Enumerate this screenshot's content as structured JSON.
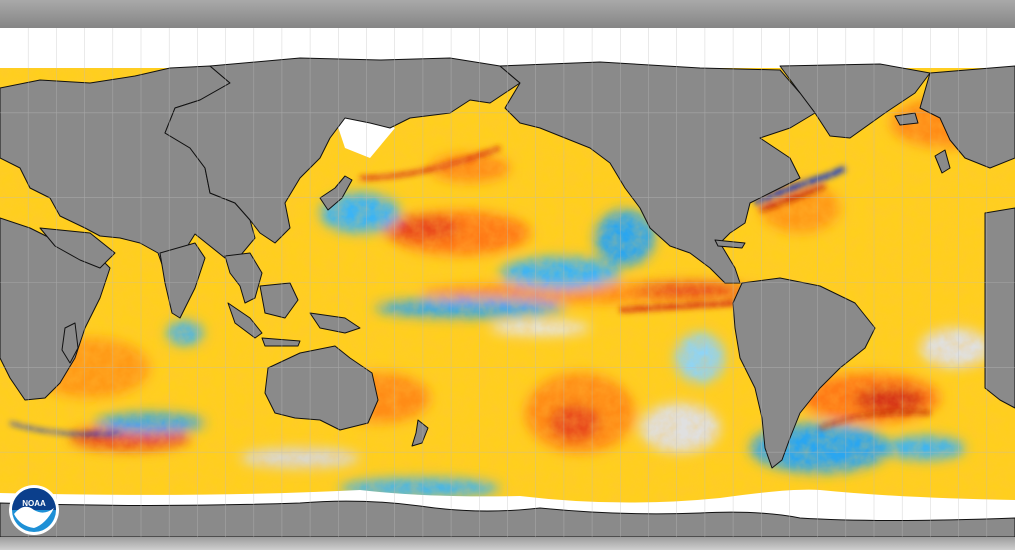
{
  "map": {
    "projection": "equirectangular",
    "variable": "sea-surface-temperature-anomaly",
    "colors": {
      "land": "#8a8a8a",
      "sea_ice": "#ffffff",
      "neutral": "#d9d9d9",
      "strong_cold": "#1e3cc8",
      "cold": "#2aa6f0",
      "light_cold": "#8fd4f5",
      "warm_light": "#ffe600",
      "warm": "#ffbe14",
      "warmer": "#ff8c14",
      "hot": "#e8461e",
      "very_hot": "#b4140a",
      "coastline": "#111111",
      "graticule": "#bdbdbd"
    },
    "graticule": true
  },
  "logo": {
    "name": "noaa-logo",
    "text": "NOAA",
    "colors": {
      "outer": "#ffffff",
      "top": "#0b3f8c",
      "bottom": "#1e90d6",
      "gull": "#ffffff"
    }
  }
}
